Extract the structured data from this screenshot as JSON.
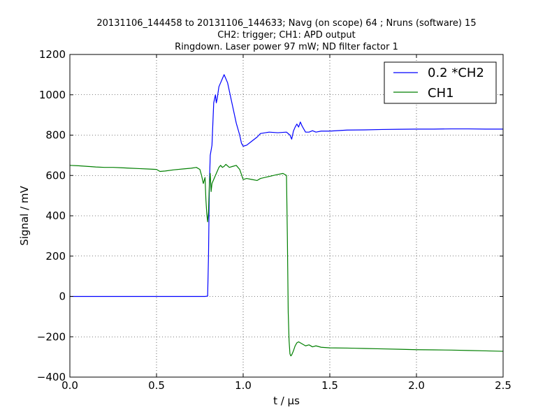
{
  "chart_data": {
    "type": "line",
    "title_lines": [
      "20131106_144458 to 20131106_144633; Navg (on scope) 64 ; Nruns (software) 15",
      "CH2: trigger; CH1: APD output",
      "Ringdown. Laser power 97 mW; ND filter factor 1"
    ],
    "xlabel": "t / μs",
    "ylabel": "Signal / mV",
    "xlim": [
      0.0,
      2.5
    ],
    "ylim": [
      -400,
      1200
    ],
    "xticks": [
      0.0,
      0.5,
      1.0,
      1.5,
      2.0,
      2.5
    ],
    "xtick_labels": [
      "0.0",
      "0.5",
      "1.0",
      "1.5",
      "2.0",
      "2.5"
    ],
    "yticks": [
      -400,
      -200,
      0,
      200,
      400,
      600,
      800,
      1000,
      1200
    ],
    "ytick_labels": [
      "−400",
      "−200",
      "0",
      "200",
      "400",
      "600",
      "800",
      "1000",
      "1200"
    ],
    "grid": true,
    "legend_position": "top-right",
    "series": [
      {
        "name": "0.2 *CH2",
        "color": "#0000ff",
        "points": [
          [
            0.0,
            0
          ],
          [
            0.2,
            0
          ],
          [
            0.4,
            0
          ],
          [
            0.6,
            0
          ],
          [
            0.78,
            0
          ],
          [
            0.795,
            2
          ],
          [
            0.8,
            200
          ],
          [
            0.805,
            550
          ],
          [
            0.81,
            700
          ],
          [
            0.82,
            750
          ],
          [
            0.83,
            960
          ],
          [
            0.84,
            1000
          ],
          [
            0.845,
            960
          ],
          [
            0.85,
            980
          ],
          [
            0.86,
            1040
          ],
          [
            0.87,
            1060
          ],
          [
            0.88,
            1080
          ],
          [
            0.89,
            1100
          ],
          [
            0.9,
            1080
          ],
          [
            0.91,
            1060
          ],
          [
            0.92,
            1020
          ],
          [
            0.94,
            940
          ],
          [
            0.96,
            860
          ],
          [
            0.98,
            800
          ],
          [
            0.99,
            760
          ],
          [
            1.0,
            745
          ],
          [
            1.02,
            750
          ],
          [
            1.05,
            770
          ],
          [
            1.08,
            790
          ],
          [
            1.1,
            808
          ],
          [
            1.15,
            815
          ],
          [
            1.2,
            812
          ],
          [
            1.25,
            815
          ],
          [
            1.27,
            800
          ],
          [
            1.28,
            780
          ],
          [
            1.29,
            820
          ],
          [
            1.3,
            840
          ],
          [
            1.31,
            855
          ],
          [
            1.32,
            840
          ],
          [
            1.33,
            865
          ],
          [
            1.34,
            845
          ],
          [
            1.36,
            815
          ],
          [
            1.38,
            815
          ],
          [
            1.4,
            822
          ],
          [
            1.42,
            815
          ],
          [
            1.45,
            820
          ],
          [
            1.5,
            820
          ],
          [
            1.6,
            825
          ],
          [
            1.7,
            826
          ],
          [
            1.8,
            828
          ],
          [
            1.9,
            829
          ],
          [
            2.0,
            830
          ],
          [
            2.1,
            830
          ],
          [
            2.2,
            831
          ],
          [
            2.3,
            831
          ],
          [
            2.4,
            830
          ],
          [
            2.5,
            830
          ]
        ]
      },
      {
        "name": "CH1",
        "color": "#007f00",
        "points": [
          [
            0.0,
            650
          ],
          [
            0.05,
            648
          ],
          [
            0.1,
            645
          ],
          [
            0.15,
            642
          ],
          [
            0.2,
            640
          ],
          [
            0.25,
            640
          ],
          [
            0.3,
            638
          ],
          [
            0.35,
            636
          ],
          [
            0.4,
            634
          ],
          [
            0.45,
            632
          ],
          [
            0.5,
            630
          ],
          [
            0.52,
            620
          ],
          [
            0.55,
            622
          ],
          [
            0.6,
            628
          ],
          [
            0.65,
            632
          ],
          [
            0.7,
            636
          ],
          [
            0.73,
            640
          ],
          [
            0.75,
            630
          ],
          [
            0.76,
            600
          ],
          [
            0.77,
            560
          ],
          [
            0.78,
            590
          ],
          [
            0.785,
            480
          ],
          [
            0.79,
            410
          ],
          [
            0.795,
            370
          ],
          [
            0.8,
            420
          ],
          [
            0.805,
            560
          ],
          [
            0.81,
            610
          ],
          [
            0.815,
            520
          ],
          [
            0.82,
            560
          ],
          [
            0.83,
            580
          ],
          [
            0.84,
            600
          ],
          [
            0.85,
            620
          ],
          [
            0.86,
            640
          ],
          [
            0.87,
            650
          ],
          [
            0.88,
            640
          ],
          [
            0.89,
            645
          ],
          [
            0.9,
            655
          ],
          [
            0.92,
            640
          ],
          [
            0.94,
            645
          ],
          [
            0.96,
            650
          ],
          [
            0.98,
            630
          ],
          [
            1.0,
            580
          ],
          [
            1.02,
            585
          ],
          [
            1.05,
            580
          ],
          [
            1.08,
            575
          ],
          [
            1.1,
            585
          ],
          [
            1.15,
            595
          ],
          [
            1.2,
            605
          ],
          [
            1.23,
            610
          ],
          [
            1.25,
            600
          ],
          [
            1.255,
            300
          ],
          [
            1.26,
            -80
          ],
          [
            1.265,
            -220
          ],
          [
            1.27,
            -285
          ],
          [
            1.275,
            -295
          ],
          [
            1.28,
            -290
          ],
          [
            1.29,
            -270
          ],
          [
            1.3,
            -245
          ],
          [
            1.31,
            -230
          ],
          [
            1.32,
            -225
          ],
          [
            1.34,
            -235
          ],
          [
            1.36,
            -245
          ],
          [
            1.38,
            -240
          ],
          [
            1.4,
            -250
          ],
          [
            1.42,
            -245
          ],
          [
            1.45,
            -252
          ],
          [
            1.5,
            -255
          ],
          [
            1.6,
            -256
          ],
          [
            1.7,
            -258
          ],
          [
            1.8,
            -260
          ],
          [
            1.9,
            -262
          ],
          [
            2.0,
            -264
          ],
          [
            2.1,
            -265
          ],
          [
            2.2,
            -266
          ],
          [
            2.3,
            -268
          ],
          [
            2.4,
            -270
          ],
          [
            2.5,
            -272
          ]
        ]
      }
    ]
  }
}
